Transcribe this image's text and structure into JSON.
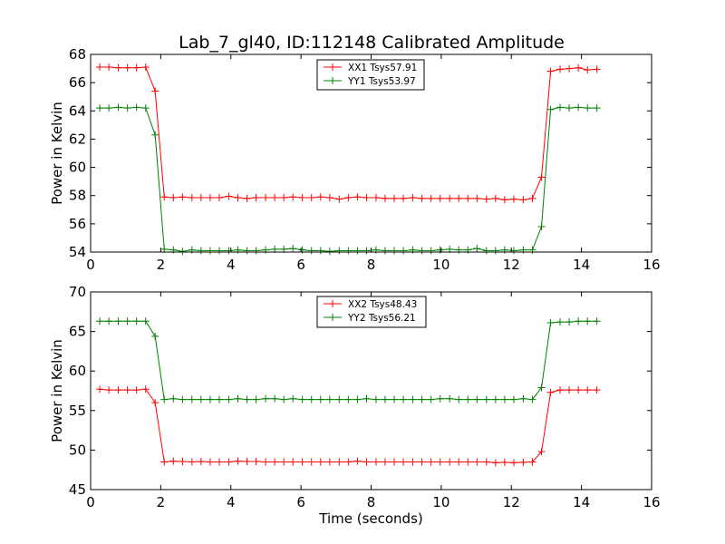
{
  "title": "Lab_7_gl40, ID:112148 Calibrated Amplitude",
  "chart_data": [
    {
      "type": "line",
      "ylabel": "Power in Kelvin",
      "xlabel": "",
      "xlim": [
        0,
        16
      ],
      "ylim": [
        54,
        68
      ],
      "xticks": [
        0,
        2,
        4,
        6,
        8,
        10,
        12,
        14,
        16
      ],
      "yticks": [
        54,
        56,
        58,
        60,
        62,
        64,
        66,
        68
      ],
      "legend_position": "top-center",
      "x": [
        0.26,
        0.52,
        0.79,
        1.05,
        1.31,
        1.57,
        1.84,
        2.1,
        2.36,
        2.62,
        2.89,
        3.15,
        3.41,
        3.67,
        3.94,
        4.2,
        4.46,
        4.72,
        4.99,
        5.25,
        5.51,
        5.77,
        6.04,
        6.3,
        6.56,
        6.82,
        7.09,
        7.35,
        7.61,
        7.87,
        8.14,
        8.4,
        8.66,
        8.92,
        9.19,
        9.45,
        9.71,
        9.97,
        10.24,
        10.5,
        10.76,
        11.02,
        11.29,
        11.55,
        11.81,
        12.07,
        12.34,
        12.6,
        12.86,
        13.12,
        13.39,
        13.65,
        13.91,
        14.17,
        14.44
      ],
      "series": [
        {
          "name": "XX1 Tsys57.91",
          "color": "#ff0000",
          "values": [
            67.1,
            67.1,
            67.05,
            67.05,
            67.05,
            67.1,
            65.4,
            57.9,
            57.85,
            57.9,
            57.85,
            57.85,
            57.85,
            57.85,
            57.95,
            57.85,
            57.8,
            57.85,
            57.85,
            57.85,
            57.85,
            57.9,
            57.85,
            57.85,
            57.9,
            57.85,
            57.75,
            57.85,
            57.9,
            57.85,
            57.85,
            57.8,
            57.8,
            57.8,
            57.85,
            57.8,
            57.8,
            57.8,
            57.8,
            57.8,
            57.8,
            57.8,
            57.75,
            57.8,
            57.7,
            57.75,
            57.7,
            57.8,
            59.3,
            66.8,
            66.95,
            67.0,
            67.05,
            66.9,
            66.95
          ]
        },
        {
          "name": "YY1 Tsys53.97",
          "color": "#008000",
          "values": [
            64.2,
            64.2,
            64.25,
            64.2,
            64.25,
            64.2,
            62.3,
            54.2,
            54.15,
            54.05,
            54.15,
            54.1,
            54.1,
            54.1,
            54.1,
            54.15,
            54.1,
            54.1,
            54.15,
            54.2,
            54.2,
            54.25,
            54.15,
            54.1,
            54.1,
            54.05,
            54.1,
            54.1,
            54.1,
            54.1,
            54.15,
            54.1,
            54.1,
            54.1,
            54.15,
            54.1,
            54.1,
            54.15,
            54.2,
            54.15,
            54.15,
            54.25,
            54.1,
            54.1,
            54.15,
            54.1,
            54.15,
            54.15,
            55.8,
            64.1,
            64.25,
            64.2,
            64.25,
            64.2,
            64.2
          ]
        }
      ]
    },
    {
      "type": "line",
      "ylabel": "Power in Kelvin",
      "xlabel": "Time (seconds)",
      "xlim": [
        0,
        16
      ],
      "ylim": [
        45,
        70
      ],
      "xticks": [
        0,
        2,
        4,
        6,
        8,
        10,
        12,
        14,
        16
      ],
      "yticks": [
        45,
        50,
        55,
        60,
        65,
        70
      ],
      "legend_position": "top-center",
      "x": [
        0.26,
        0.52,
        0.79,
        1.05,
        1.31,
        1.57,
        1.84,
        2.1,
        2.36,
        2.62,
        2.89,
        3.15,
        3.41,
        3.67,
        3.94,
        4.2,
        4.46,
        4.72,
        4.99,
        5.25,
        5.51,
        5.77,
        6.04,
        6.3,
        6.56,
        6.82,
        7.09,
        7.35,
        7.61,
        7.87,
        8.14,
        8.4,
        8.66,
        8.92,
        9.19,
        9.45,
        9.71,
        9.97,
        10.24,
        10.5,
        10.76,
        11.02,
        11.29,
        11.55,
        11.81,
        12.07,
        12.34,
        12.6,
        12.86,
        13.12,
        13.39,
        13.65,
        13.91,
        14.17,
        14.44
      ],
      "series": [
        {
          "name": "XX2 Tsys48.43",
          "color": "#ff0000",
          "values": [
            57.7,
            57.6,
            57.6,
            57.6,
            57.6,
            57.7,
            56.0,
            48.5,
            48.6,
            48.55,
            48.5,
            48.55,
            48.5,
            48.5,
            48.5,
            48.6,
            48.55,
            48.55,
            48.5,
            48.5,
            48.5,
            48.5,
            48.5,
            48.5,
            48.5,
            48.5,
            48.5,
            48.5,
            48.6,
            48.5,
            48.5,
            48.5,
            48.5,
            48.5,
            48.5,
            48.5,
            48.5,
            48.5,
            48.5,
            48.5,
            48.5,
            48.5,
            48.5,
            48.4,
            48.45,
            48.4,
            48.45,
            48.5,
            49.8,
            57.3,
            57.6,
            57.6,
            57.6,
            57.6,
            57.6
          ]
        },
        {
          "name": "YY2 Tsys56.21",
          "color": "#008000",
          "values": [
            66.3,
            66.3,
            66.3,
            66.3,
            66.3,
            66.3,
            64.4,
            56.4,
            56.5,
            56.4,
            56.4,
            56.4,
            56.4,
            56.4,
            56.4,
            56.5,
            56.4,
            56.4,
            56.5,
            56.5,
            56.4,
            56.5,
            56.4,
            56.4,
            56.4,
            56.4,
            56.4,
            56.4,
            56.4,
            56.5,
            56.4,
            56.4,
            56.4,
            56.4,
            56.4,
            56.4,
            56.4,
            56.5,
            56.5,
            56.4,
            56.4,
            56.4,
            56.4,
            56.4,
            56.4,
            56.4,
            56.5,
            56.4,
            57.9,
            66.1,
            66.2,
            66.2,
            66.3,
            66.3,
            66.3
          ]
        }
      ]
    }
  ]
}
